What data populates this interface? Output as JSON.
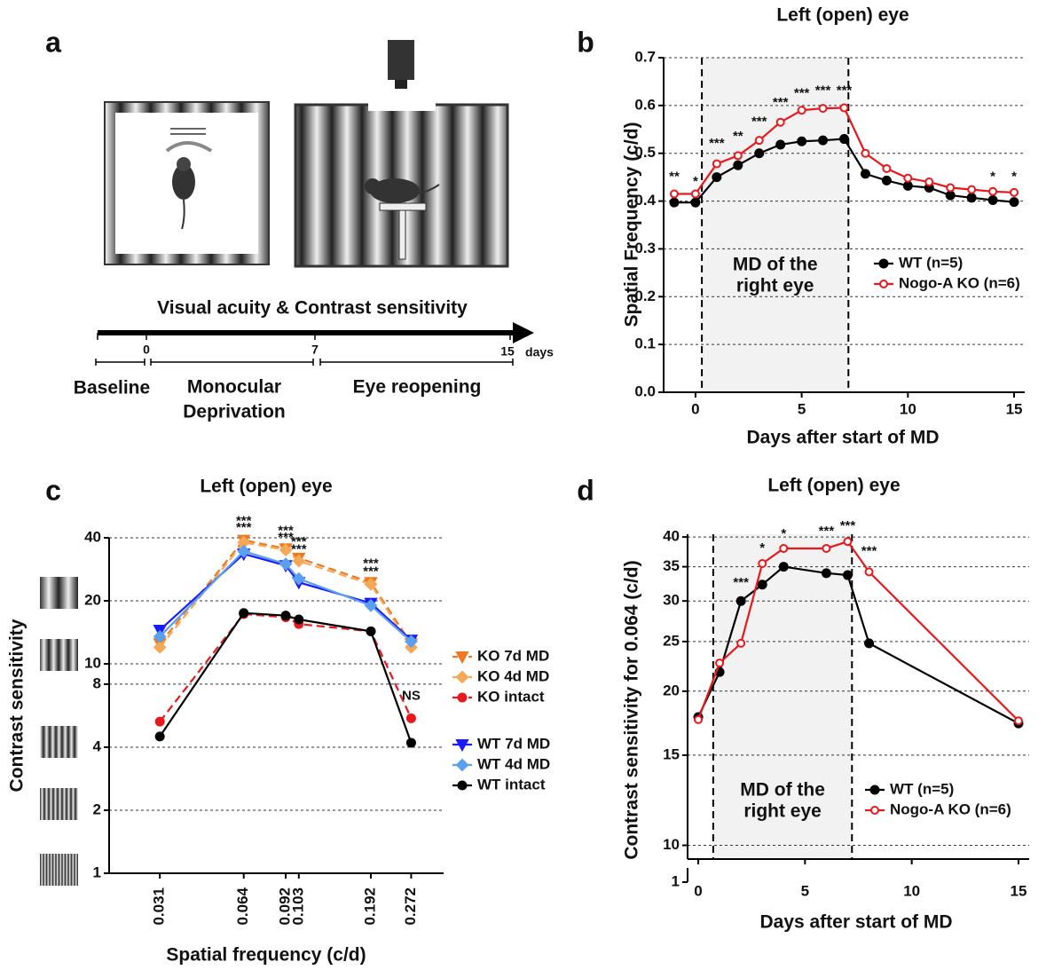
{
  "diagram": {
    "panel": "a",
    "timeline_title": "Visual acuity & Contrast sensitivity",
    "timeline_ticks": [
      "0",
      "7",
      "15"
    ],
    "timeline_unit": "days",
    "phase_1": "Baseline",
    "phase_2_lines": [
      "Monocular",
      "Deprivation"
    ],
    "phase_3": "Eye reopening"
  },
  "chart_data": [
    {
      "type": "line",
      "panel": "b",
      "title": "Left (open) eye",
      "xlabel": "Days after start of MD",
      "ylabel": "Spatial Frequency (c/d)",
      "x": [
        -1,
        0,
        1,
        2,
        3,
        4,
        5,
        6,
        7,
        8,
        9,
        10,
        11,
        12,
        13,
        14,
        15
      ],
      "xlim": [
        -1.5,
        15.5
      ],
      "xticks": [
        0,
        5,
        10,
        15
      ],
      "ylim": [
        0,
        0.7
      ],
      "yticks": [
        {
          "value": 0,
          "label": "0.0"
        },
        0.1,
        0.2,
        0.3,
        0.4,
        0.5,
        0.6,
        0.7
      ],
      "grid": true,
      "shaded": [
        0.3,
        7.2
      ],
      "shaded_label": [
        "MD of the",
        "right eye"
      ],
      "series": [
        {
          "name": "WT (n=5)",
          "color": "#000000",
          "marker": "circle",
          "fill": "solid",
          "values": [
            0.397,
            0.397,
            0.45,
            0.475,
            0.5,
            0.518,
            0.525,
            0.527,
            0.53,
            0.457,
            0.443,
            0.432,
            0.428,
            0.412,
            0.407,
            0.402,
            0.398
          ]
        },
        {
          "name": "Nogo-A KO (n=6)",
          "color": "#e8191c",
          "marker": "circle",
          "fill": "open",
          "values": [
            0.415,
            0.415,
            0.478,
            0.495,
            0.527,
            0.565,
            0.59,
            0.594,
            0.595,
            0.5,
            0.468,
            0.448,
            0.44,
            0.428,
            0.424,
            0.42,
            0.418
          ]
        }
      ],
      "annotations": [
        {
          "x": -1,
          "y": 0.45,
          "text": "**"
        },
        {
          "x": 0,
          "y": 0.44,
          "text": "*"
        },
        {
          "x": 1,
          "y": 0.52,
          "text": "***"
        },
        {
          "x": 2,
          "y": 0.535,
          "text": "**"
        },
        {
          "x": 3,
          "y": 0.565,
          "text": "***"
        },
        {
          "x": 4,
          "y": 0.605,
          "text": "***"
        },
        {
          "x": 5,
          "y": 0.625,
          "text": "***"
        },
        {
          "x": 6,
          "y": 0.63,
          "text": "***"
        },
        {
          "x": 7,
          "y": 0.63,
          "text": "***"
        },
        {
          "x": 14,
          "y": 0.45,
          "text": "*"
        },
        {
          "x": 15,
          "y": 0.45,
          "text": "*"
        }
      ]
    },
    {
      "type": "line",
      "panel": "c",
      "title": "Left (open) eye",
      "xlabel": "Spatial frequency (c/d)",
      "ylabel": "Contrast sensitivity",
      "xlog": true,
      "ylog": true,
      "x": [
        0.031,
        0.064,
        0.092,
        0.103,
        0.192,
        0.272
      ],
      "xlim": [
        0.02,
        0.36
      ],
      "xticks": [
        0.031,
        0.064,
        0.092,
        0.103,
        0.192,
        0.272
      ],
      "ylim": [
        1,
        40
      ],
      "yticks": [
        1,
        2,
        4,
        8,
        10,
        20,
        40
      ],
      "grid": true,
      "series": [
        {
          "name": "KO 7d MD",
          "color": "#f07820",
          "marker": "triangle",
          "fill": "solid",
          "dash": true,
          "values": [
            12.5,
            39,
            35.5,
            32,
            24.5,
            12.5
          ]
        },
        {
          "name": "KO 4d MD",
          "color": "#f5a855",
          "marker": "diamond",
          "fill": "solid",
          "dash": true,
          "values": [
            12,
            38,
            35,
            31,
            24,
            12
          ]
        },
        {
          "name": "KO intact",
          "color": "#e8191c",
          "marker": "circle",
          "fill": "solid",
          "dash": true,
          "values": [
            5.3,
            17.3,
            16.7,
            15.5,
            14.3,
            5.5
          ]
        },
        {
          "name": "WT 7d MD",
          "color": "#1a1aff",
          "marker": "triangle",
          "fill": "solid",
          "values": [
            14.5,
            33.5,
            29.5,
            24.5,
            19.5,
            13
          ]
        },
        {
          "name": "WT 4d MD",
          "color": "#5aa0f0",
          "marker": "diamond",
          "fill": "solid",
          "values": [
            13.5,
            34.5,
            30,
            25.5,
            19,
            12.8
          ]
        },
        {
          "name": "WT intact",
          "color": "#000000",
          "marker": "circle",
          "fill": "solid",
          "values": [
            4.5,
            17.5,
            17,
            16.3,
            14.3,
            4.2
          ]
        }
      ],
      "annotations": [
        {
          "x": 0.064,
          "y": 48,
          "text": "***",
          "color": "#f07820"
        },
        {
          "x": 0.064,
          "y": 44.5,
          "text": "***",
          "color": "#f5a855"
        },
        {
          "x": 0.092,
          "y": 43,
          "text": "***",
          "color": "#f07820"
        },
        {
          "x": 0.092,
          "y": 40,
          "text": "***",
          "color": "#f5a855"
        },
        {
          "x": 0.103,
          "y": 38,
          "text": "***",
          "color": "#f07820"
        },
        {
          "x": 0.103,
          "y": 35,
          "text": "***",
          "color": "#f5a855"
        },
        {
          "x": 0.192,
          "y": 30,
          "text": "***",
          "color": "#f07820"
        },
        {
          "x": 0.192,
          "y": 27.5,
          "text": "***",
          "color": "#f5a855"
        },
        {
          "x": 0.272,
          "y": 7,
          "text": "NS",
          "color": "#e8191c"
        }
      ]
    },
    {
      "type": "line",
      "panel": "d",
      "title": "Left (open) eye",
      "xlabel": "Days after start of MD",
      "ylabel": "Contrast sensitivity for 0.064 (c/d)",
      "ylog": true,
      "x": [
        0,
        1,
        2,
        3,
        4,
        6,
        7,
        8,
        15
      ],
      "xlim": [
        -0.5,
        15.5
      ],
      "xticks": [
        0,
        5,
        10,
        15
      ],
      "ylim": [
        9.4,
        40.5
      ],
      "yticks": [
        10,
        15,
        20,
        25,
        30,
        35,
        40
      ],
      "ybreak_tick": 1,
      "grid": true,
      "shaded": [
        0.7,
        7.2
      ],
      "shaded_label": [
        "MD of the",
        "right eye"
      ],
      "series": [
        {
          "name": "WT (n=5)",
          "color": "#000000",
          "marker": "circle",
          "fill": "solid",
          "values": [
            17.8,
            21.8,
            30,
            32.3,
            35,
            34,
            33.7,
            24.8,
            17.3
          ]
        },
        {
          "name": "Nogo-A KO (n=6)",
          "color": "#e8191c",
          "marker": "circle",
          "fill": "open",
          "values": [
            17.6,
            22.7,
            24.8,
            35.5,
            38,
            38,
            39.2,
            34.2,
            17.5
          ]
        }
      ],
      "annotations": [
        {
          "x": 2,
          "y": 32.5,
          "text": "***"
        },
        {
          "x": 3,
          "y": 38,
          "text": "*"
        },
        {
          "x": 4,
          "y": 40.5,
          "text": "*"
        },
        {
          "x": 6,
          "y": 41,
          "text": "***"
        },
        {
          "x": 7,
          "y": 42,
          "text": "***"
        },
        {
          "x": 8,
          "y": 37.5,
          "text": "***"
        }
      ]
    }
  ]
}
